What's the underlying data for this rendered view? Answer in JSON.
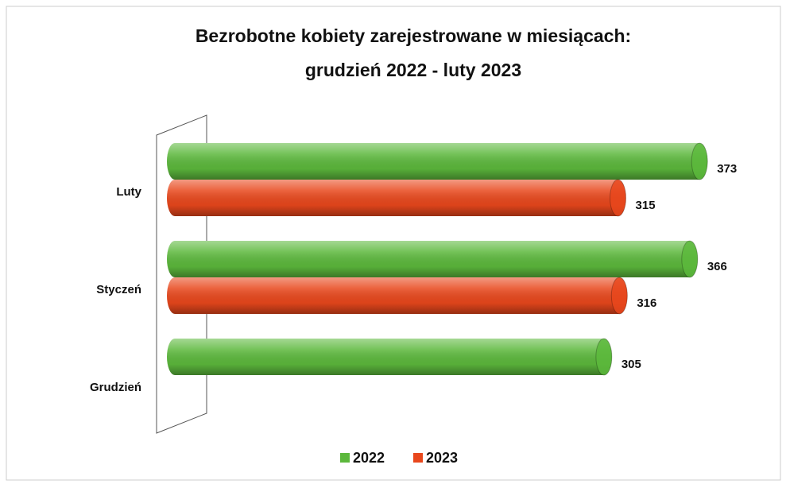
{
  "chart_data": {
    "type": "bar",
    "orientation": "horizontal",
    "title": [
      "Bezrobotne kobiety zarejestrowane w miesiącach:",
      "grudzień 2022 - luty 2023"
    ],
    "categories": [
      "Grudzień",
      "Styczeń",
      "Luty"
    ],
    "series": [
      {
        "name": "2022",
        "color": "#5cb83c",
        "values": [
          305,
          366,
          373
        ]
      },
      {
        "name": "2023",
        "color": "#e8471c",
        "values": [
          null,
          316,
          315
        ]
      }
    ],
    "xlim": [
      0,
      400
    ]
  }
}
